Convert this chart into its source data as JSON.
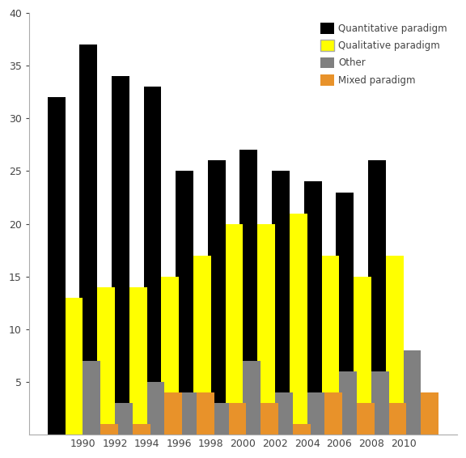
{
  "years": [
    1990,
    1992,
    1994,
    1996,
    1998,
    2000,
    2002,
    2004,
    2006,
    2008,
    2010
  ],
  "quantitative": [
    32,
    37,
    34,
    33,
    25,
    26,
    27,
    25,
    24,
    23,
    26
  ],
  "qualitative": [
    13,
    14,
    14,
    15,
    17,
    20,
    20,
    21,
    17,
    15,
    17
  ],
  "other": [
    7,
    3,
    5,
    4,
    3,
    7,
    4,
    4,
    6,
    6,
    8
  ],
  "mixed": [
    1,
    1,
    4,
    4,
    3,
    3,
    1,
    4,
    3,
    3,
    4
  ],
  "colors": {
    "quantitative": "#000000",
    "qualitative": "#ffff00",
    "other": "#808080",
    "mixed": "#e8922a"
  },
  "legend_labels": [
    "Quantitative paradigm",
    "Qualitative paradigm",
    "Other",
    "Mixed paradigm"
  ],
  "ylim": [
    0,
    40
  ],
  "yticks": [
    5,
    10,
    15,
    20,
    25,
    30,
    35,
    40
  ],
  "bar_width": 0.55,
  "figsize": [
    5.76,
    5.66
  ],
  "dpi": 100
}
